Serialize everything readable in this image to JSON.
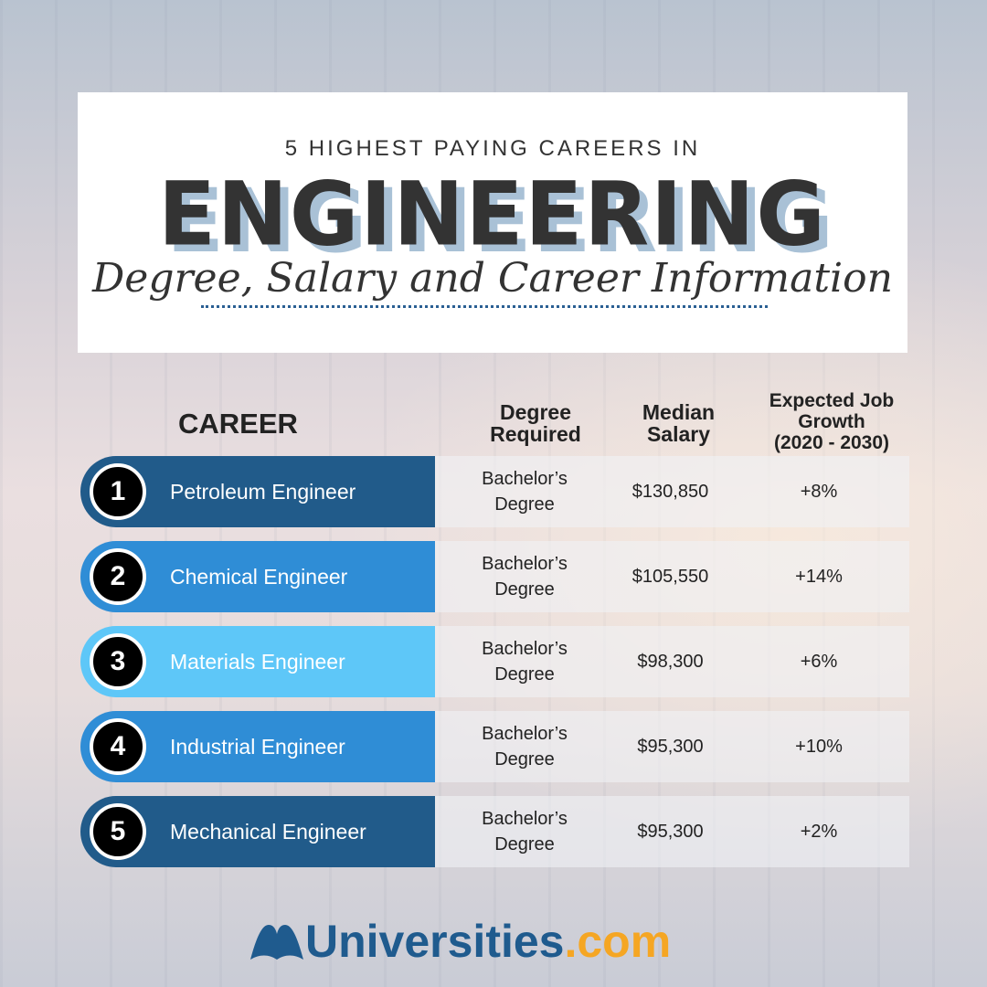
{
  "header": {
    "kicker": "5 HIGHEST PAYING CAREERS IN",
    "title": "ENGINEERING",
    "subtitle": "Degree, Salary and Career Information"
  },
  "columns": {
    "career": "CAREER",
    "degree": "Degree Required",
    "salary": "Median Salary",
    "growth_line1": "Expected Job Growth",
    "growth_line2": "(2020 - 2030)"
  },
  "rows": [
    {
      "rank": "1",
      "career": "Petroleum Engineer",
      "degree": "Bachelor’s Degree",
      "salary": "$130,850",
      "growth": "+8%",
      "color": "#215b8a"
    },
    {
      "rank": "2",
      "career": "Chemical Engineer",
      "degree": "Bachelor’s Degree",
      "salary": "$105,550",
      "growth": "+14%",
      "color": "#2f8dd6"
    },
    {
      "rank": "3",
      "career": "Materials Engineer",
      "degree": "Bachelor’s Degree",
      "salary": "$98,300",
      "growth": "+6%",
      "color": "#5ec7f8"
    },
    {
      "rank": "4",
      "career": "Industrial Engineer",
      "degree": "Bachelor’s Degree",
      "salary": "$95,300",
      "growth": "+10%",
      "color": "#2f8dd6"
    },
    {
      "rank": "5",
      "career": "Mechanical Engineer",
      "degree": "Bachelor’s Degree",
      "salary": "$95,300",
      "growth": "+2%",
      "color": "#215b8a"
    }
  ],
  "logo": {
    "name": "Universities",
    ".com": ".com",
    "text": "Universities.com",
    "icon": "book-icon"
  },
  "colors": {
    "brand": "#1f5b8e",
    "accent": "#f5a623"
  }
}
